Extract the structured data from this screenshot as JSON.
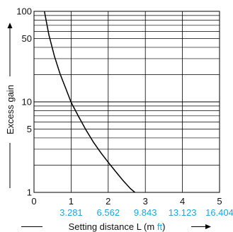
{
  "chart_data": {
    "type": "line",
    "title": "",
    "xlabel": {
      "prefix": "Setting distance L (m ",
      "alt_unit": "ft",
      "suffix": ")"
    },
    "ylabel": "Excess gain",
    "xlim": [
      0,
      5
    ],
    "ylim": [
      1,
      100
    ],
    "y_scale": "log",
    "grid": true,
    "x_ticks": [
      "0",
      "1",
      "2",
      "3",
      "4",
      "5"
    ],
    "x_ticks_ft": [
      "3.281",
      "6.562",
      "9.843",
      "13.123",
      "16.404"
    ],
    "y_ticks": [
      "1",
      "5",
      "10",
      "50",
      "100"
    ],
    "series": [
      {
        "x": [
          0.28,
          0.4,
          0.55,
          0.7,
          0.85,
          1.0,
          1.2,
          1.4,
          1.6,
          1.8,
          2.0,
          2.2,
          2.4,
          2.6,
          2.72
        ],
        "y": [
          100,
          55,
          32,
          20.5,
          14.3,
          9.9,
          6.9,
          4.9,
          3.6,
          2.75,
          2.15,
          1.7,
          1.35,
          1.1,
          0.97
        ]
      }
    ],
    "colors": {
      "line": "#000000",
      "grid": "#000000",
      "ft_text": "#1aa7e0",
      "text": "#111111"
    }
  }
}
